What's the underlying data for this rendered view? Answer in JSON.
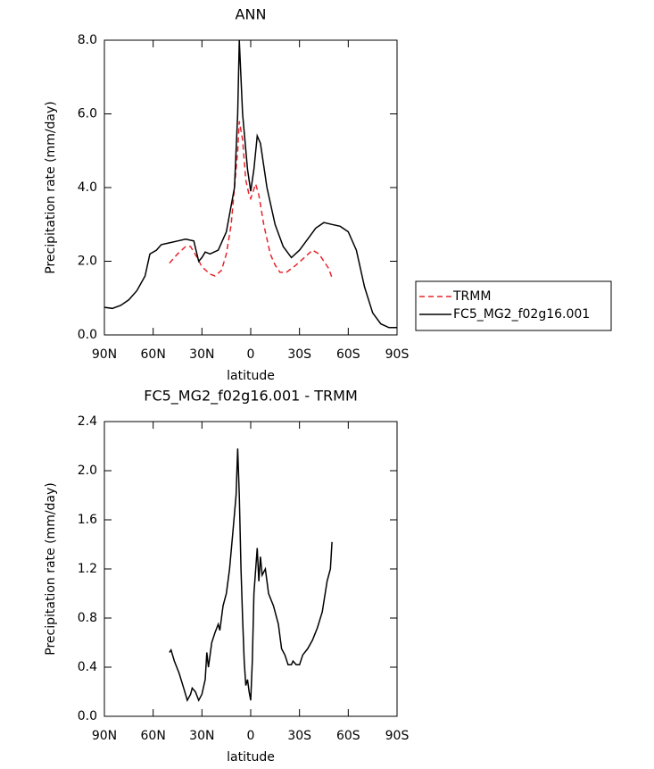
{
  "chart_data": [
    {
      "type": "line",
      "title": "ANN",
      "xlabel": "latitude",
      "ylabel": "Precipitation rate (mm/day)",
      "xlim": [
        90,
        -90
      ],
      "xticks": [
        {
          "value": 90,
          "label": "90N"
        },
        {
          "value": 60,
          "label": "60N"
        },
        {
          "value": 30,
          "label": "30N"
        },
        0,
        {
          "value": -30,
          "label": "30S"
        },
        {
          "value": -60,
          "label": "60S"
        },
        {
          "value": -90,
          "label": "90S"
        }
      ],
      "ylim": [
        0,
        8
      ],
      "yticks": [
        {
          "value": 0,
          "label": "0.0"
        },
        {
          "value": 2,
          "label": "2.0"
        },
        {
          "value": 4,
          "label": "4.0"
        },
        {
          "value": 6,
          "label": "6.0"
        },
        {
          "value": 8,
          "label": "8.0"
        }
      ],
      "legend": "right",
      "series": [
        {
          "name": "TRMM",
          "color": "#e8242a",
          "dash": true,
          "x": [
            50,
            45,
            40,
            37,
            33,
            30,
            25,
            22,
            18,
            15,
            12,
            10,
            8,
            7,
            5,
            3,
            1,
            0,
            -3,
            -5,
            -8,
            -12,
            -15,
            -18,
            -22,
            -28,
            -33,
            -38,
            -42,
            -45,
            -48,
            -50
          ],
          "values": [
            1.95,
            2.2,
            2.4,
            2.4,
            2.1,
            1.85,
            1.65,
            1.6,
            1.75,
            2.2,
            3.0,
            4.0,
            5.0,
            5.8,
            5.3,
            4.2,
            3.8,
            3.7,
            4.1,
            3.8,
            3.0,
            2.2,
            1.9,
            1.7,
            1.7,
            1.9,
            2.1,
            2.3,
            2.2,
            2.0,
            1.8,
            1.55
          ]
        },
        {
          "name": "FC5_MG2_f02g16.001",
          "color": "#000000",
          "dash": false,
          "x": [
            90,
            85,
            80,
            75,
            70,
            65,
            62,
            58,
            55,
            50,
            45,
            40,
            35,
            32,
            30,
            28,
            25,
            20,
            15,
            10,
            8,
            7,
            5,
            2,
            0,
            -2,
            -4,
            -6,
            -10,
            -15,
            -20,
            -25,
            -30,
            -35,
            -40,
            -45,
            -50,
            -55,
            -60,
            -65,
            -70,
            -75,
            -80,
            -85,
            -90
          ],
          "values": [
            0.75,
            0.72,
            0.8,
            0.95,
            1.2,
            1.6,
            2.2,
            2.3,
            2.45,
            2.5,
            2.55,
            2.6,
            2.55,
            2.0,
            2.1,
            2.25,
            2.2,
            2.3,
            2.8,
            4.0,
            6.0,
            8.0,
            6.0,
            4.5,
            3.9,
            4.5,
            5.4,
            5.2,
            4.0,
            3.0,
            2.4,
            2.1,
            2.3,
            2.6,
            2.9,
            3.05,
            3.0,
            2.95,
            2.8,
            2.3,
            1.3,
            0.6,
            0.3,
            0.2,
            0.2
          ]
        }
      ]
    },
    {
      "type": "line",
      "title": "FC5_MG2_f02g16.001 - TRMM",
      "xlabel": "latitude",
      "ylabel": "Precipitation rate (mm/day)",
      "xlim": [
        90,
        -90
      ],
      "xticks": [
        {
          "value": 90,
          "label": "90N"
        },
        {
          "value": 60,
          "label": "60N"
        },
        {
          "value": 30,
          "label": "30N"
        },
        0,
        {
          "value": -30,
          "label": "30S"
        },
        {
          "value": -60,
          "label": "60S"
        },
        {
          "value": -90,
          "label": "90S"
        }
      ],
      "ylim": [
        0,
        2.4
      ],
      "yticks": [
        {
          "value": 0,
          "label": "0.0"
        },
        0.4,
        0.8,
        1.2,
        1.6,
        {
          "value": 2,
          "label": "2.0"
        },
        2.4
      ],
      "series": [
        {
          "color": "#000000",
          "dash": false,
          "x": [
            50,
            49,
            47,
            44,
            41,
            39,
            37,
            36,
            34,
            32,
            30,
            28,
            27,
            26,
            24,
            22,
            20,
            19,
            17,
            15,
            13,
            11,
            9,
            8,
            7,
            6,
            5,
            4,
            3,
            2,
            1,
            0,
            -1,
            -2,
            -4,
            -5,
            -6,
            -7,
            -9,
            -11,
            -14,
            -17,
            -19,
            -21,
            -23,
            -25,
            -26,
            -28,
            -30,
            -32,
            -35,
            -38,
            -41,
            -44,
            -47,
            -49,
            -50
          ],
          "values": [
            0.52,
            0.54,
            0.45,
            0.35,
            0.22,
            0.13,
            0.18,
            0.23,
            0.2,
            0.13,
            0.18,
            0.3,
            0.52,
            0.4,
            0.6,
            0.68,
            0.75,
            0.7,
            0.9,
            1.0,
            1.2,
            1.5,
            1.8,
            2.18,
            1.8,
            1.2,
            0.8,
            0.45,
            0.25,
            0.3,
            0.2,
            0.13,
            0.45,
            1.0,
            1.37,
            1.1,
            1.3,
            1.15,
            1.2,
            1.0,
            0.9,
            0.75,
            0.55,
            0.5,
            0.42,
            0.42,
            0.45,
            0.42,
            0.42,
            0.5,
            0.55,
            0.62,
            0.72,
            0.85,
            1.1,
            1.2,
            1.42
          ]
        }
      ]
    }
  ]
}
